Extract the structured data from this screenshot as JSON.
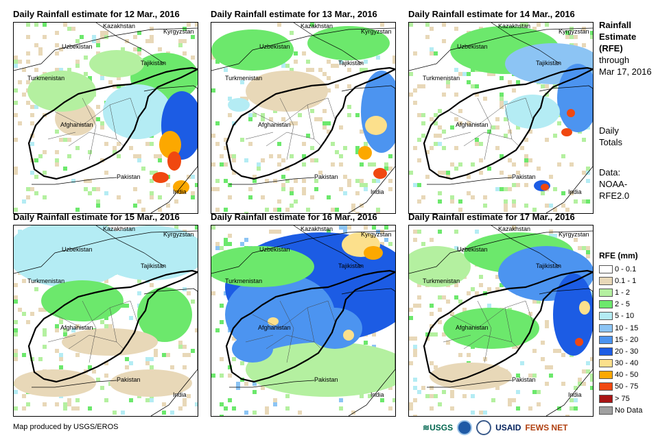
{
  "panels": [
    {
      "title": "Daily Rainfall estimate for 12 Mar., 2016"
    },
    {
      "title": "Daily Rainfall estimate for 13 Mar., 2016"
    },
    {
      "title": "Daily Rainfall estimate for 14 Mar., 2016"
    },
    {
      "title": "Daily Rainfall estimate for 15 Mar., 2016"
    },
    {
      "title": "Daily Rainfall estimate for 16 Mar., 2016"
    },
    {
      "title": "Daily Rainfall estimate for 17 Mar., 2016"
    }
  ],
  "map_labels": {
    "kazakhstan": "Kazakhstan",
    "uzbekistan": "Uzbekistan",
    "kyrgyzstan": "Kyrgyzstan",
    "tajikistan": "Tajikistan",
    "turkmenistan": "Turkmenistan",
    "afghanistan": "Afghanistan",
    "pakistan": "Pakistan",
    "india": "India"
  },
  "sidebar": {
    "title_lines": [
      "Rainfall",
      "Estimate",
      "(RFE)"
    ],
    "through_label": "through",
    "date": "Mar 17, 2016",
    "totals_lines": [
      "Daily",
      "Totals"
    ],
    "data_lines": [
      "Data:",
      "NOAA-",
      "RFE2.0"
    ]
  },
  "legend": {
    "title": "RFE (mm)",
    "items": [
      {
        "label": "0 - 0.1",
        "color": "#ffffff"
      },
      {
        "label": "0.1 - 1",
        "color": "#e8d8b8"
      },
      {
        "label": "1 - 2",
        "color": "#b4f0a0"
      },
      {
        "label": "2 - 5",
        "color": "#6ce86c"
      },
      {
        "label": "5 - 10",
        "color": "#b4ecf4"
      },
      {
        "label": "10 - 15",
        "color": "#8cc4f4"
      },
      {
        "label": "15 - 20",
        "color": "#4c94f0"
      },
      {
        "label": "20 - 30",
        "color": "#1c5ce4"
      },
      {
        "label": "30 - 40",
        "color": "#fce08c"
      },
      {
        "label": "40 - 50",
        "color": "#fca800"
      },
      {
        "label": "50 - 75",
        "color": "#f04810"
      },
      {
        "label": "> 75",
        "color": "#a81414"
      },
      {
        "label": "No Data",
        "color": "#a0a0a0"
      }
    ]
  },
  "footer": {
    "credit": "Map produced by USGS/EROS"
  },
  "logos": {
    "usgs": "USGS",
    "usaid": "USAID",
    "fewsnet": "FEWS NET"
  }
}
